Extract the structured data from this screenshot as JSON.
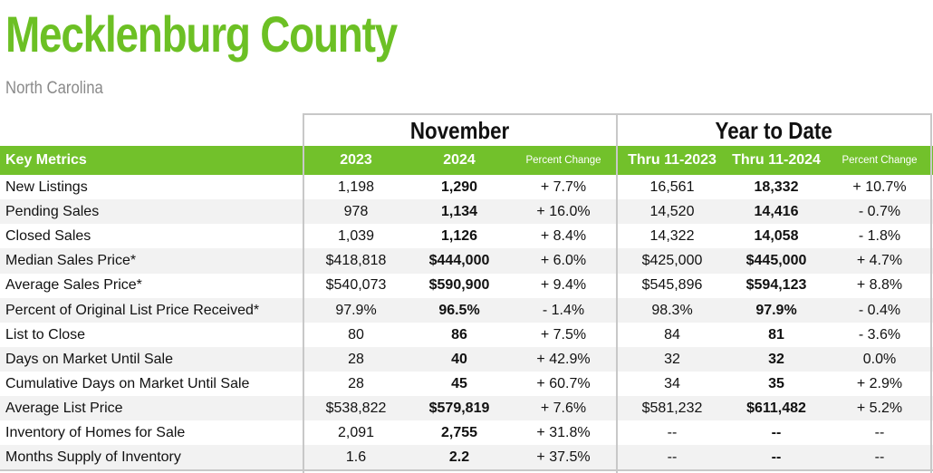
{
  "title": "Mecklenburg County",
  "subtitle": "North Carolina",
  "groups": {
    "november": "November",
    "ytd": "Year to Date"
  },
  "headers": {
    "metric": "Key Metrics",
    "y2023": "2023",
    "y2024": "2024",
    "pct1": "Percent Change",
    "thru2023": "Thru 11-2023",
    "thru2024": "Thru 11-2024",
    "pct2": "Percent Change"
  },
  "rows": [
    {
      "metric": "New Listings",
      "v2023": "1,198",
      "v2024": "1,290",
      "pct": "+ 7.7%",
      "ytd2023": "16,561",
      "ytd2024": "18,332",
      "ytdpct": "+ 10.7%"
    },
    {
      "metric": "Pending Sales",
      "v2023": "978",
      "v2024": "1,134",
      "pct": "+ 16.0%",
      "ytd2023": "14,520",
      "ytd2024": "14,416",
      "ytdpct": "- 0.7%"
    },
    {
      "metric": "Closed Sales",
      "v2023": "1,039",
      "v2024": "1,126",
      "pct": "+ 8.4%",
      "ytd2023": "14,322",
      "ytd2024": "14,058",
      "ytdpct": "- 1.8%"
    },
    {
      "metric": "Median Sales Price*",
      "v2023": "$418,818",
      "v2024": "$444,000",
      "pct": "+ 6.0%",
      "ytd2023": "$425,000",
      "ytd2024": "$445,000",
      "ytdpct": "+ 4.7%"
    },
    {
      "metric": "Average Sales Price*",
      "v2023": "$540,073",
      "v2024": "$590,900",
      "pct": "+ 9.4%",
      "ytd2023": "$545,896",
      "ytd2024": "$594,123",
      "ytdpct": "+ 8.8%"
    },
    {
      "metric": "Percent of Original List Price Received*",
      "v2023": "97.9%",
      "v2024": "96.5%",
      "pct": "- 1.4%",
      "ytd2023": "98.3%",
      "ytd2024": "97.9%",
      "ytdpct": "- 0.4%"
    },
    {
      "metric": "List to Close",
      "v2023": "80",
      "v2024": "86",
      "pct": "+ 7.5%",
      "ytd2023": "84",
      "ytd2024": "81",
      "ytdpct": "- 3.6%"
    },
    {
      "metric": "Days on Market Until Sale",
      "v2023": "28",
      "v2024": "40",
      "pct": "+ 42.9%",
      "ytd2023": "32",
      "ytd2024": "32",
      "ytdpct": "0.0%"
    },
    {
      "metric": "Cumulative Days on Market Until Sale",
      "v2023": "28",
      "v2024": "45",
      "pct": "+ 60.7%",
      "ytd2023": "34",
      "ytd2024": "35",
      "ytdpct": "+ 2.9%"
    },
    {
      "metric": "Average List Price",
      "v2023": "$538,822",
      "v2024": "$579,819",
      "pct": "+ 7.6%",
      "ytd2023": "$581,232",
      "ytd2024": "$611,482",
      "ytdpct": "+ 5.2%"
    },
    {
      "metric": "Inventory of Homes for Sale",
      "v2023": "2,091",
      "v2024": "2,755",
      "pct": "+ 31.8%",
      "ytd2023": "--",
      "ytd2024": "--",
      "ytdpct": "--"
    },
    {
      "metric": "Months Supply of Inventory",
      "v2023": "1.6",
      "v2024": "2.2",
      "pct": "+ 37.5%",
      "ytd2023": "--",
      "ytd2024": "--",
      "ytdpct": "--"
    }
  ]
}
